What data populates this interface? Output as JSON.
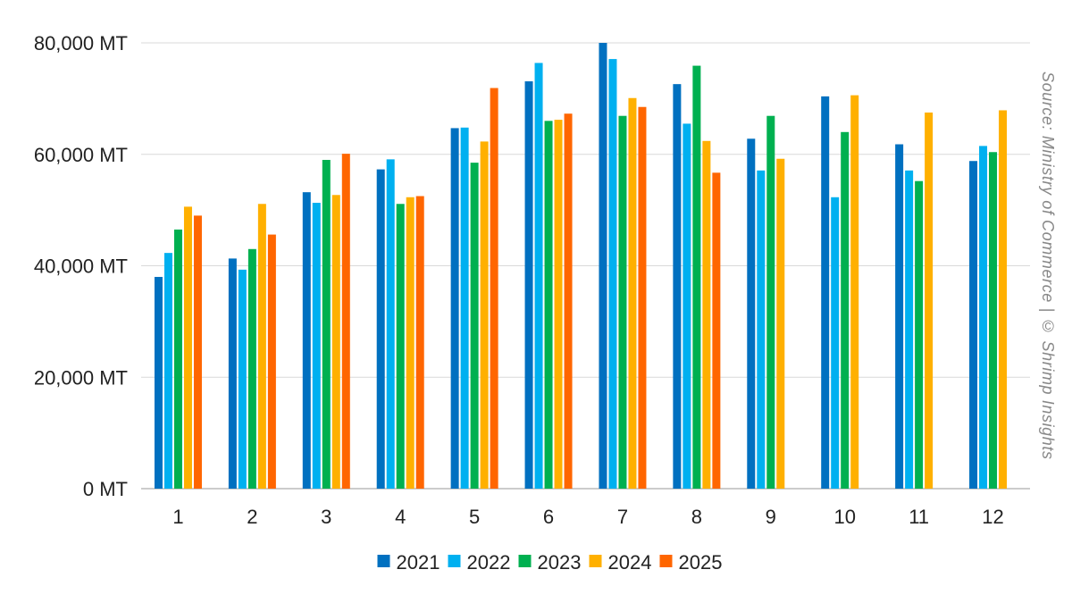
{
  "chart_data": {
    "type": "bar",
    "title": "",
    "xlabel": "",
    "ylabel": "",
    "categories": [
      "1",
      "2",
      "3",
      "4",
      "5",
      "6",
      "7",
      "8",
      "9",
      "10",
      "11",
      "12"
    ],
    "ylim": [
      0,
      80000
    ],
    "y_ticks": [
      0,
      20000,
      40000,
      60000,
      80000
    ],
    "y_tick_labels": [
      "0 MT",
      "20,000 MT",
      "40,000 MT",
      "60,000 MT",
      "80,000 MT"
    ],
    "grid": true,
    "legend_position": "bottom",
    "series": [
      {
        "name": "2021",
        "color": "#0070C0",
        "values": [
          38000,
          41300,
          53200,
          57300,
          64700,
          73100,
          80000,
          72600,
          62800,
          70400,
          61800,
          58800
        ]
      },
      {
        "name": "2022",
        "color": "#00B0F0",
        "values": [
          42300,
          39300,
          51300,
          59100,
          64800,
          76400,
          77100,
          65500,
          57100,
          52300,
          57100,
          61500
        ]
      },
      {
        "name": "2023",
        "color": "#00B050",
        "values": [
          46500,
          43000,
          59000,
          51100,
          58500,
          66000,
          66900,
          75900,
          66900,
          64000,
          55200,
          60400
        ]
      },
      {
        "name": "2024",
        "color": "#FFB000",
        "values": [
          50600,
          51100,
          52700,
          52300,
          62300,
          66200,
          70100,
          62400,
          59200,
          70600,
          67500,
          67900
        ]
      },
      {
        "name": "2025",
        "color": "#FF6600",
        "values": [
          49000,
          45600,
          60100,
          52500,
          71900,
          67300,
          68500,
          56700,
          null,
          null,
          null,
          null
        ]
      }
    ]
  },
  "source_text": "Source: Ministry of Commerce | © Shrimp Insights"
}
